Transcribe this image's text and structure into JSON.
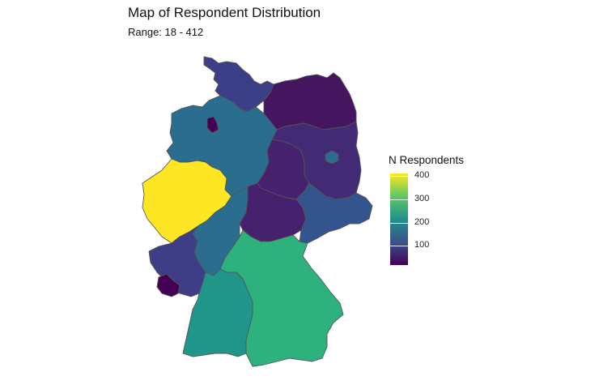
{
  "title": "Map of Respondent Distribution",
  "subtitle": "Range: 18 - 412",
  "legend": {
    "title": "N Respondents",
    "min": 18,
    "max": 412,
    "ticks": [
      "100",
      "200",
      "300",
      "400"
    ],
    "tick_values": [
      100,
      200,
      300,
      400
    ]
  },
  "colors": {
    "low": "#440154",
    "mid_low": "#3b528b",
    "mid": "#21918c",
    "mid_high": "#5ec962",
    "high": "#fde725",
    "border": "#555555"
  },
  "regions": [
    {
      "id": "schleswig-holstein",
      "fill": "#3b3f88"
    },
    {
      "id": "hamburg",
      "fill": "#3b3f88"
    },
    {
      "id": "mecklenburg-vorpommern",
      "fill": "#45165f"
    },
    {
      "id": "niedersachsen",
      "fill": "#2b6d8e"
    },
    {
      "id": "bremen",
      "fill": "#440154"
    },
    {
      "id": "berlin",
      "fill": "#2b6d8e"
    },
    {
      "id": "brandenburg",
      "fill": "#432a75"
    },
    {
      "id": "sachsen-anhalt",
      "fill": "#46226e"
    },
    {
      "id": "nordrhein-westfalen",
      "fill": "#fde725"
    },
    {
      "id": "hessen",
      "fill": "#2b6d8e"
    },
    {
      "id": "thueringen",
      "fill": "#46226e"
    },
    {
      "id": "sachsen",
      "fill": "#33548c"
    },
    {
      "id": "rheinland-pfalz",
      "fill": "#3d3e86"
    },
    {
      "id": "saarland",
      "fill": "#440154"
    },
    {
      "id": "baden-wuerttemberg",
      "fill": "#20968b"
    },
    {
      "id": "bayern",
      "fill": "#2db27d"
    }
  ]
}
